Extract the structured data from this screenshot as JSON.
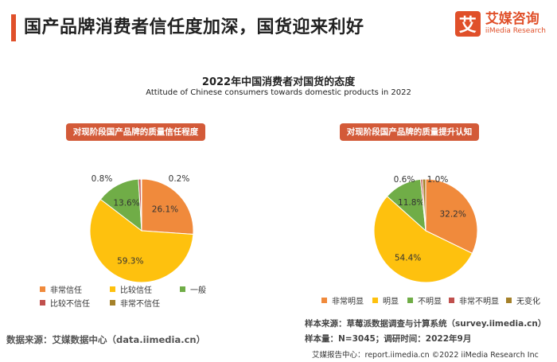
{
  "header": {
    "title": "国产品牌消费者信任度加深，国货迎来利好",
    "logo_mark": "艾",
    "logo_cn": "艾媒咨询",
    "logo_en": "iiMedia Research"
  },
  "main": {
    "title": "2022年中国消费者对国货的态度",
    "subtitle": "Attitude of Chinese consumers towards domestic products in 2022"
  },
  "chart_data": [
    {
      "type": "pie",
      "title": "对现阶段国产品牌的质量信任程度",
      "categories": [
        "非常信任",
        "比较信任",
        "一般",
        "比较不信任",
        "非常不信任"
      ],
      "values": [
        26.1,
        59.3,
        13.6,
        0.8,
        0.2
      ],
      "labels": [
        "26.1%",
        "59.3%",
        "13.6%",
        "0.8%",
        "0.2%"
      ],
      "colors": [
        "#f08a3c",
        "#fec10e",
        "#70ad47",
        "#c0504d",
        "#a5812a"
      ],
      "legend_position": "bottom-left"
    },
    {
      "type": "pie",
      "title": "对现阶段国产品牌的质量提升认知",
      "categories": [
        "非常明显",
        "明显",
        "不明显",
        "非常不明显",
        "无变化"
      ],
      "values": [
        32.2,
        54.4,
        11.8,
        0.6,
        1.0
      ],
      "labels": [
        "32.2%",
        "54.4%",
        "11.8%",
        "0.6%",
        "1.0%"
      ],
      "colors": [
        "#f08a3c",
        "#fec10e",
        "#70ad47",
        "#c0504d",
        "#a5812a"
      ],
      "legend_position": "bottom"
    }
  ],
  "footer": {
    "source_left": "数据来源：艾媒数据中心（data.iimedia.cn）",
    "sample_source": "样本来源：草莓派数据调查与计算系统（survey.iimedia.cn）",
    "sample_size": "样本量：N=3045；调研时间：2022年9月",
    "credit": "艾媒报告中心：report.iimedia.cn   ©2022  iiMedia Research  Inc"
  }
}
